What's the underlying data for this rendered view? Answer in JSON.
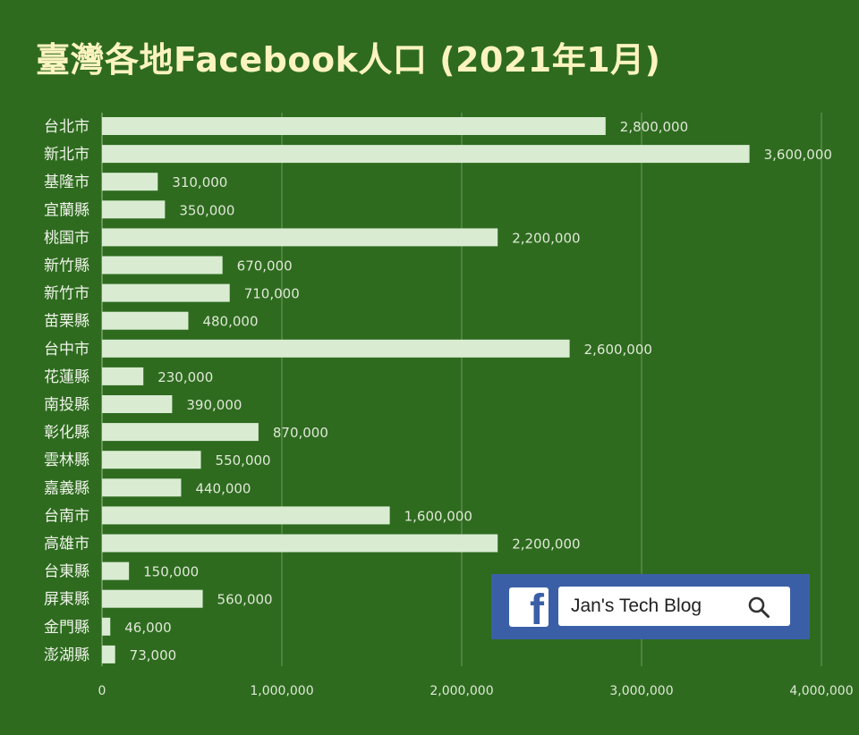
{
  "title": "臺灣各地Facebook人口 (2021年1月)",
  "colors": {
    "background": "#2e6b1f",
    "bar": "#d9ecd2",
    "title": "#fbf3c0",
    "badge": "#3b5fa7"
  },
  "badge": {
    "logo_icon": "facebook-f-icon",
    "search_text": "Jan's Tech Blog",
    "search_icon": "search-icon"
  },
  "chart_data": {
    "type": "bar",
    "orientation": "horizontal",
    "title": "臺灣各地Facebook人口 (2021年1月)",
    "xlabel": "",
    "ylabel": "",
    "xlim": [
      0,
      4000000
    ],
    "xticks": [
      0,
      1000000,
      2000000,
      3000000,
      4000000
    ],
    "xtick_labels": [
      "0",
      "1,000,000",
      "2,000,000",
      "3,000,000",
      "4,000,000"
    ],
    "grid": true,
    "categories": [
      "台北市",
      "新北市",
      "基隆市",
      "宜蘭縣",
      "桃園市",
      "新竹縣",
      "新竹市",
      "苗栗縣",
      "台中市",
      "花蓮縣",
      "南投縣",
      "彰化縣",
      "雲林縣",
      "嘉義縣",
      "台南市",
      "高雄市",
      "台東縣",
      "屏東縣",
      "金門縣",
      "澎湖縣"
    ],
    "values": [
      2800000,
      3600000,
      310000,
      350000,
      2200000,
      670000,
      710000,
      480000,
      2600000,
      230000,
      390000,
      870000,
      550000,
      440000,
      1600000,
      2200000,
      150000,
      560000,
      46000,
      73000
    ],
    "value_labels": [
      "2,800,000",
      "3,600,000",
      "310,000",
      "350,000",
      "2,200,000",
      "670,000",
      "710,000",
      "480,000",
      "2,600,000",
      "230,000",
      "390,000",
      "870,000",
      "550,000",
      "440,000",
      "1,600,000",
      "2,200,000",
      "150,000",
      "560,000",
      "46,000",
      "73,000"
    ]
  }
}
